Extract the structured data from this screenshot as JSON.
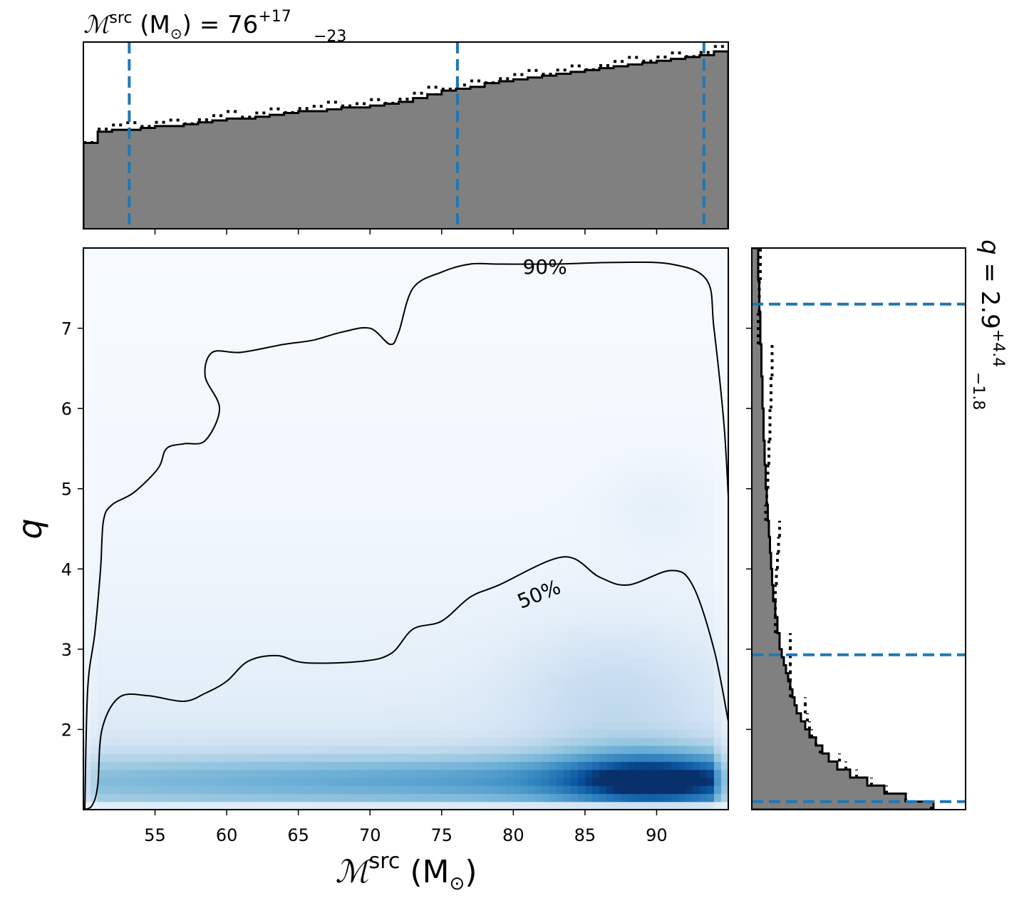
{
  "chart_data": [
    {
      "type": "histogram",
      "panel": "top-marginal",
      "title_main": "ℳ",
      "title_sup": "src",
      "title_mid": " (M",
      "title_sun": "⊙",
      "title_end": ") = 76",
      "title_upper": "+17",
      "title_lower": "−23",
      "x_range": [
        50,
        95
      ],
      "bin_edges": [
        50,
        51,
        52,
        53,
        54,
        55,
        56,
        57,
        58,
        59,
        60,
        61,
        62,
        63,
        64,
        65,
        66,
        67,
        68,
        69,
        70,
        71,
        72,
        73,
        74,
        75,
        76,
        77,
        78,
        79,
        80,
        81,
        82,
        83,
        84,
        85,
        86,
        87,
        88,
        89,
        90,
        91,
        92,
        93,
        94,
        95
      ],
      "counts": [
        0.46,
        0.52,
        0.53,
        0.53,
        0.54,
        0.55,
        0.55,
        0.56,
        0.57,
        0.58,
        0.59,
        0.59,
        0.6,
        0.61,
        0.62,
        0.63,
        0.63,
        0.64,
        0.65,
        0.65,
        0.66,
        0.67,
        0.68,
        0.7,
        0.72,
        0.74,
        0.75,
        0.76,
        0.78,
        0.79,
        0.8,
        0.81,
        0.82,
        0.83,
        0.84,
        0.85,
        0.86,
        0.87,
        0.88,
        0.89,
        0.9,
        0.91,
        0.92,
        0.93,
        0.95
      ],
      "quantile_lines": [
        53.2,
        76.1,
        93.3
      ]
    },
    {
      "type": "heatmap",
      "panel": "main-2d",
      "xlabel_main": "ℳ",
      "xlabel_sup": "src",
      "xlabel_mid": " (M",
      "xlabel_sun": "⊙",
      "xlabel_end": ")",
      "ylabel": "q",
      "x_range": [
        50,
        95
      ],
      "y_range": [
        1.0,
        8.0
      ],
      "x_ticks": [
        "55",
        "60",
        "65",
        "70",
        "75",
        "80",
        "85",
        "90"
      ],
      "y_ticks": [
        "2",
        "3",
        "4",
        "5",
        "6",
        "7"
      ],
      "contours": [
        {
          "label": "90%",
          "points": [
            [
              50.1,
              1.0
            ],
            [
              50.3,
              2.5
            ],
            [
              50.8,
              3.2
            ],
            [
              51.2,
              4.0
            ],
            [
              51.4,
              4.6
            ],
            [
              52.0,
              4.8
            ],
            [
              53.5,
              4.95
            ],
            [
              55.2,
              5.25
            ],
            [
              55.8,
              5.5
            ],
            [
              57.0,
              5.56
            ],
            [
              58.5,
              5.6
            ],
            [
              59.5,
              6.0
            ],
            [
              58.5,
              6.4
            ],
            [
              59.0,
              6.7
            ],
            [
              61.0,
              6.7
            ],
            [
              64.0,
              6.8
            ],
            [
              66.0,
              6.85
            ],
            [
              68.0,
              6.95
            ],
            [
              70.0,
              7.0
            ],
            [
              71.4,
              6.8
            ],
            [
              72.0,
              6.95
            ],
            [
              73.0,
              7.5
            ],
            [
              75.0,
              7.7
            ],
            [
              77.0,
              7.8
            ],
            [
              79.0,
              7.8
            ],
            [
              83.0,
              7.8
            ],
            [
              87.0,
              7.82
            ],
            [
              91.0,
              7.8
            ],
            [
              93.5,
              7.6
            ],
            [
              94.0,
              7.0
            ],
            [
              94.7,
              5.8
            ],
            [
              95.0,
              4.9
            ]
          ],
          "label_at": [
            82.2,
            7.76
          ]
        },
        {
          "label": "50%",
          "points": [
            [
              50.0,
              1.0
            ],
            [
              50.6,
              1.05
            ],
            [
              51.0,
              1.3
            ],
            [
              51.3,
              2.0
            ],
            [
              52.5,
              2.4
            ],
            [
              54.5,
              2.42
            ],
            [
              57.0,
              2.35
            ],
            [
              58.5,
              2.45
            ],
            [
              60.0,
              2.6
            ],
            [
              61.5,
              2.85
            ],
            [
              63.5,
              2.92
            ],
            [
              65.5,
              2.83
            ],
            [
              69.5,
              2.85
            ],
            [
              71.5,
              2.95
            ],
            [
              73.0,
              3.25
            ],
            [
              75.0,
              3.35
            ],
            [
              77.0,
              3.65
            ],
            [
              79.0,
              3.8
            ],
            [
              83.5,
              4.15
            ],
            [
              86.0,
              3.9
            ],
            [
              88.0,
              3.8
            ],
            [
              91.0,
              3.98
            ],
            [
              92.5,
              3.8
            ],
            [
              94.0,
              3.0
            ],
            [
              95.0,
              2.1
            ]
          ],
          "label_at": [
            81.8,
            3.68
          ]
        }
      ],
      "density_peak": [
        89.5,
        1.35
      ]
    },
    {
      "type": "histogram",
      "panel": "right-marginal",
      "title_q": "q",
      "title_eq": " = 2.9",
      "title_upper": "+4.4",
      "title_lower": "−1.8",
      "y_range": [
        1.0,
        8.0
      ],
      "bin_edges": [
        1.0,
        1.1,
        1.2,
        1.3,
        1.4,
        1.5,
        1.6,
        1.7,
        1.8,
        1.9,
        2.0,
        2.1,
        2.2,
        2.3,
        2.4,
        2.5,
        2.6,
        2.7,
        2.8,
        2.9,
        3.0,
        3.2,
        3.4,
        3.6,
        3.8,
        4.0,
        4.2,
        4.4,
        4.6,
        4.8,
        5.0,
        5.3,
        5.6,
        6.0,
        6.4,
        6.8,
        7.2,
        7.6,
        8.0
      ],
      "counts": [
        0.85,
        0.72,
        0.62,
        0.54,
        0.46,
        0.4,
        0.36,
        0.33,
        0.3,
        0.27,
        0.25,
        0.23,
        0.21,
        0.2,
        0.19,
        0.18,
        0.17,
        0.16,
        0.15,
        0.14,
        0.13,
        0.12,
        0.11,
        0.1,
        0.095,
        0.09,
        0.085,
        0.08,
        0.075,
        0.07,
        0.065,
        0.06,
        0.055,
        0.05,
        0.045,
        0.04,
        0.035,
        0.03
      ],
      "quantile_lines": [
        1.1,
        2.93,
        7.3
      ]
    }
  ],
  "colors": {
    "hist_fill": "#808080",
    "quantile_line": "#1f77b4",
    "contour": "#000000",
    "density_low": "#eef4fb",
    "density_high": "#08306b"
  }
}
